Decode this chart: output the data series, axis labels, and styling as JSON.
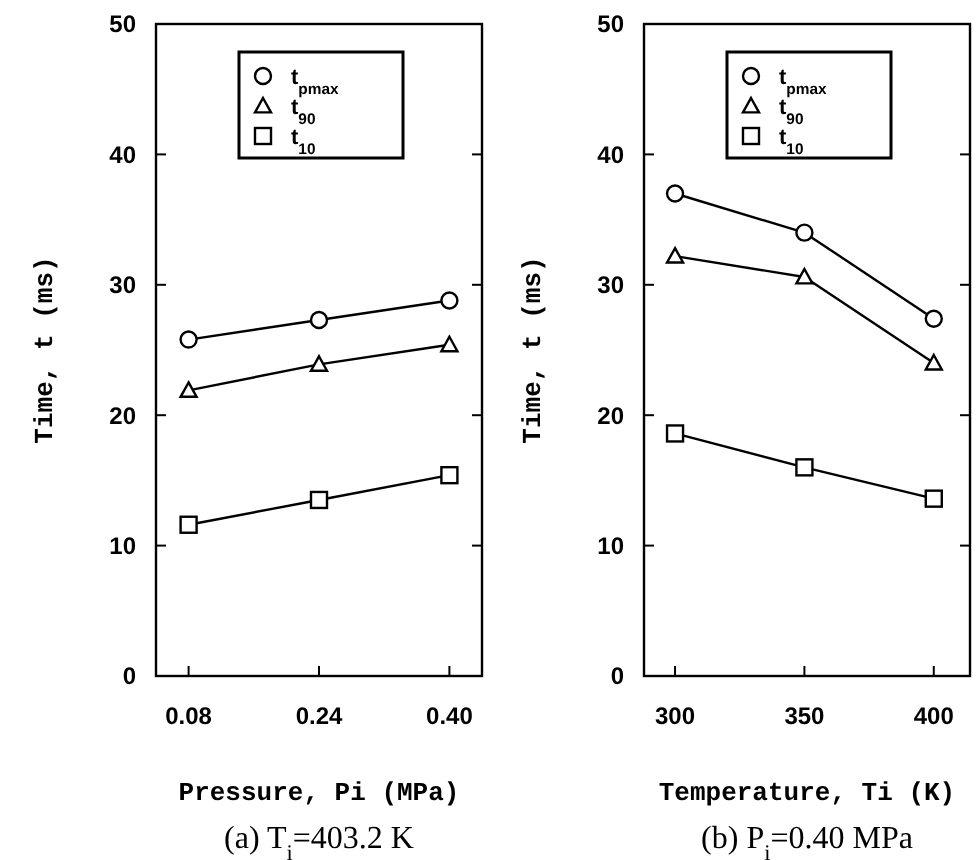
{
  "chart_data": [
    {
      "type": "line",
      "xlabel": "Pressure, Pi (MPa)",
      "ylabel": "Time, t (ms)",
      "annotations": [
        "(a)  T$_{i}$=403.2 K"
      ],
      "x": [
        0.08,
        0.24,
        0.4
      ],
      "xlim": [
        0.04,
        0.44
      ],
      "xticks": [
        {
          "value": 0.08,
          "label": "0.08"
        },
        {
          "value": 0.24,
          "label": "0.24"
        },
        {
          "value": 0.4,
          "label": "0.40"
        }
      ],
      "ylim": [
        0,
        50
      ],
      "yticks": [
        0,
        10,
        20,
        30,
        40,
        50
      ],
      "grid": false,
      "legend": "top",
      "line_style": "solid",
      "series": [
        {
          "name": "t$_{pmax}$",
          "color": "#000000",
          "marker": "circle",
          "values": [
            25.8,
            27.3,
            28.8
          ]
        },
        {
          "name": "t$_{90}$",
          "color": "#000000",
          "marker": "triangle",
          "values": [
            21.9,
            23.9,
            25.4
          ]
        },
        {
          "name": "t$_{10}$",
          "color": "#000000",
          "marker": "square",
          "values": [
            11.6,
            13.5,
            15.4
          ]
        }
      ]
    },
    {
      "type": "line",
      "xlabel": "Temperature, Ti (K)",
      "ylabel": "Time, t (ms)",
      "annotations": [
        "(b)  P$_{i}$=0.40 MPa"
      ],
      "x": [
        300,
        350,
        400
      ],
      "xlim": [
        288,
        414
      ],
      "xticks": [
        300,
        350,
        400
      ],
      "ylim": [
        0,
        50
      ],
      "yticks": [
        0,
        10,
        20,
        30,
        40,
        50
      ],
      "grid": false,
      "legend": "top",
      "line_style": "solid",
      "series": [
        {
          "name": "t$_{pmax}$",
          "color": "#000000",
          "marker": "circle",
          "values": [
            37,
            34,
            27.4
          ]
        },
        {
          "name": "t$_{90}$",
          "color": "#000000",
          "marker": "triangle",
          "values": [
            32.2,
            30.6,
            24
          ]
        },
        {
          "name": "t$_{10}$",
          "color": "#000000",
          "marker": "square",
          "values": [
            18.6,
            16,
            13.6
          ]
        }
      ]
    }
  ]
}
